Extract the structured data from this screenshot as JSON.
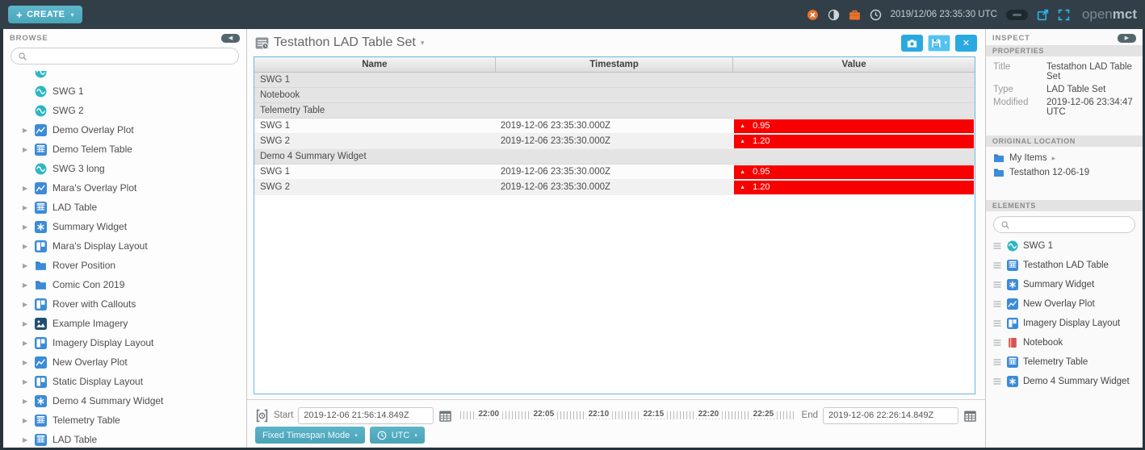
{
  "topbar": {
    "create_label": "CREATE",
    "time": "2019/12/06 23:35:30 UTC",
    "logo_open": "open",
    "logo_mct": "mct"
  },
  "browse": {
    "title": "BROWSE",
    "search_placeholder": "",
    "tree": [
      {
        "label": "",
        "icon": "telemetry",
        "arrow": false,
        "clipped": true
      },
      {
        "label": "SWG 1",
        "icon": "telemetry",
        "arrow": false
      },
      {
        "label": "SWG 2",
        "icon": "telemetry",
        "arrow": false
      },
      {
        "label": "Demo Overlay Plot",
        "icon": "plot",
        "arrow": true
      },
      {
        "label": "Demo Telem Table",
        "icon": "table",
        "arrow": true
      },
      {
        "label": "SWG 3 long",
        "icon": "telemetry",
        "arrow": false
      },
      {
        "label": "Mara's Overlay Plot",
        "icon": "plot",
        "arrow": true
      },
      {
        "label": "LAD Table",
        "icon": "table",
        "arrow": true
      },
      {
        "label": "Summary Widget",
        "icon": "widget",
        "arrow": true
      },
      {
        "label": "Mara's Display Layout",
        "icon": "layout",
        "arrow": true
      },
      {
        "label": "Rover Position",
        "icon": "folder",
        "arrow": true
      },
      {
        "label": "Comic Con 2019",
        "icon": "folder",
        "arrow": true
      },
      {
        "label": "Rover with Callouts",
        "icon": "layout",
        "arrow": true
      },
      {
        "label": "Example Imagery",
        "icon": "imagery",
        "arrow": true
      },
      {
        "label": "Imagery Display Layout",
        "icon": "layout",
        "arrow": true
      },
      {
        "label": "New Overlay Plot",
        "icon": "plot",
        "arrow": true
      },
      {
        "label": "Static Display Layout",
        "icon": "layout",
        "arrow": true
      },
      {
        "label": "Demo 4 Summary Widget",
        "icon": "widget",
        "arrow": true
      },
      {
        "label": "Telemetry Table",
        "icon": "table",
        "arrow": true
      },
      {
        "label": "LAD Table",
        "icon": "table",
        "arrow": true
      }
    ]
  },
  "main": {
    "title": "Testathon LAD Table Set",
    "columns": [
      "Name",
      "Timestamp",
      "Value"
    ],
    "rows": [
      {
        "kind": "group",
        "name": "SWG 1"
      },
      {
        "kind": "group",
        "name": "Notebook"
      },
      {
        "kind": "group",
        "name": "Telemetry Table"
      },
      {
        "kind": "data",
        "name": "SWG 1",
        "timestamp": "2019-12-06 23:35:30.000Z",
        "value": "0.95"
      },
      {
        "kind": "data",
        "name": "SWG 2",
        "timestamp": "2019-12-06 23:35:30.000Z",
        "value": "1.20"
      },
      {
        "kind": "group",
        "name": "Demo 4 Summary Widget"
      },
      {
        "kind": "data",
        "name": "SWG 1",
        "timestamp": "2019-12-06 23:35:30.000Z",
        "value": "0.95"
      },
      {
        "kind": "data",
        "name": "SWG 2",
        "timestamp": "2019-12-06 23:35:30.000Z",
        "value": "1.20"
      }
    ],
    "conductor": {
      "start_label": "Start",
      "start_value": "2019-12-06 21:56:14.849Z",
      "end_label": "End",
      "end_value": "2019-12-06 22:26:14.849Z",
      "ticks": [
        "22:00",
        "22:05",
        "22:10",
        "22:15",
        "22:20",
        "22:25"
      ],
      "mode_button": "Fixed Timespan Mode",
      "tz_button": "UTC"
    }
  },
  "inspector": {
    "title": "INSPECT",
    "sections": {
      "properties_header": "PROPERTIES",
      "location_header": "ORIGINAL LOCATION",
      "elements_header": "ELEMENTS"
    },
    "properties": [
      {
        "label": "Title",
        "value": "Testathon LAD Table Set"
      },
      {
        "label": "Type",
        "value": "LAD Table Set"
      },
      {
        "label": "Modified",
        "value": "2019-12-06 23:34:47 UTC"
      }
    ],
    "location": [
      {
        "label": "My Items",
        "icon": "folder",
        "caret": true
      },
      {
        "label": "Testathon 12-06-19",
        "icon": "folder",
        "caret": false
      }
    ],
    "elements": [
      {
        "label": "SWG 1",
        "icon": "telemetry"
      },
      {
        "label": "Testathon LAD Table",
        "icon": "table"
      },
      {
        "label": "Summary Widget",
        "icon": "widget"
      },
      {
        "label": "New Overlay Plot",
        "icon": "plot"
      },
      {
        "label": "Imagery Display Layout",
        "icon": "layout"
      },
      {
        "label": "Notebook",
        "icon": "notebook"
      },
      {
        "label": "Telemetry Table",
        "icon": "table"
      },
      {
        "label": "Demo 4 Summary Widget",
        "icon": "widget"
      }
    ]
  }
}
